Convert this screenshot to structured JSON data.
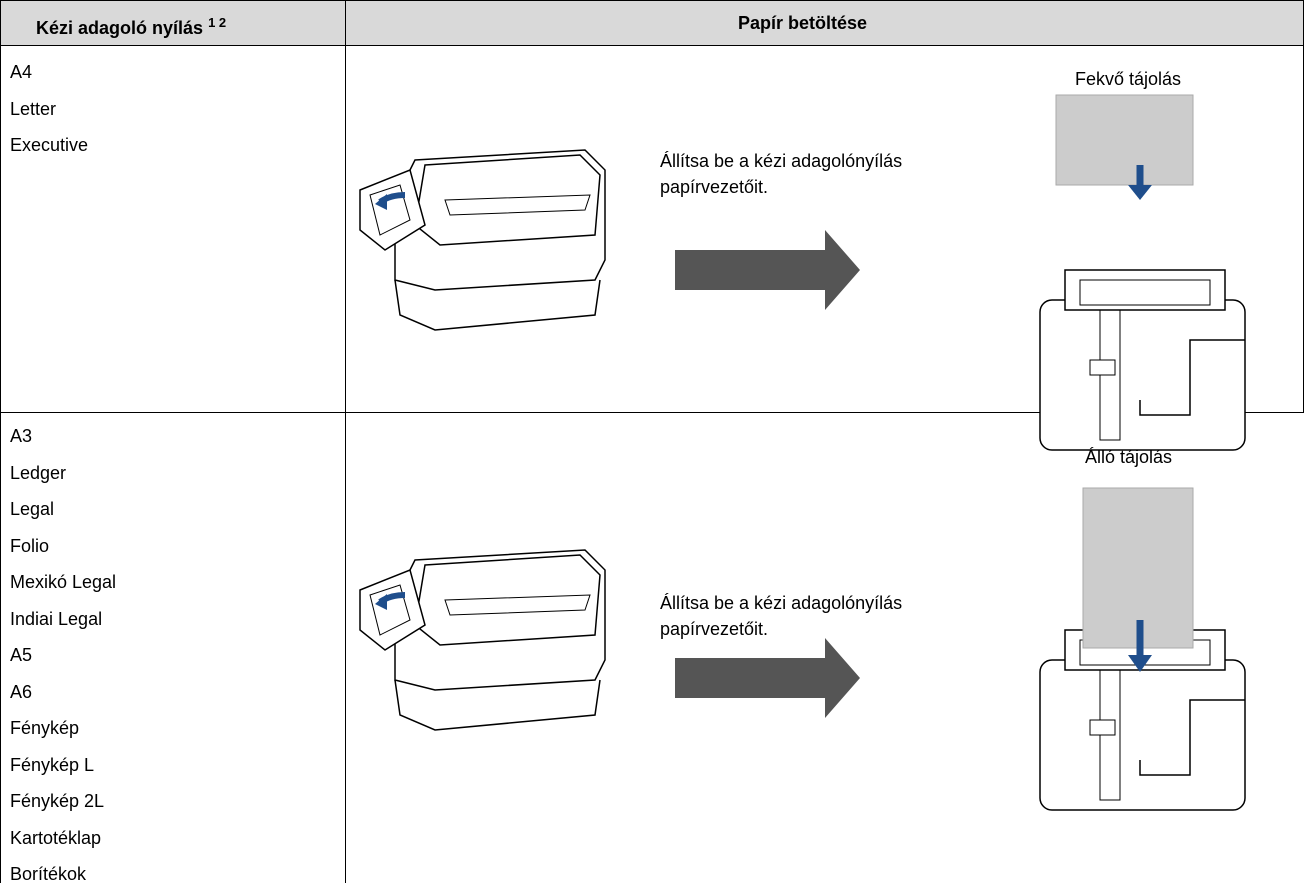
{
  "header": {
    "col1": "Kézi adagoló nyílás",
    "col1_notes": "1 2",
    "col2": "Papír betöltése"
  },
  "rows": [
    {
      "sizes": [
        "A4",
        "Letter",
        "Executive"
      ],
      "instruction": [
        "Állítsa be a kézi adagolónyílás",
        "papírvezetőit."
      ],
      "orientation": "Fekvő tájolás"
    },
    {
      "sizes": [
        "A3",
        "Ledger",
        "Legal",
        "Folio",
        "Mexikó Legal",
        "Indiai Legal",
        "A5",
        "A6",
        "Fénykép",
        "Fénykép L",
        "Fénykép 2L",
        "Kartotéklap",
        "Borítékok"
      ],
      "instruction": [
        "Állítsa be a kézi adagolónyílás",
        "papírvezetőit."
      ],
      "orientation": "Álló tájolás"
    }
  ]
}
